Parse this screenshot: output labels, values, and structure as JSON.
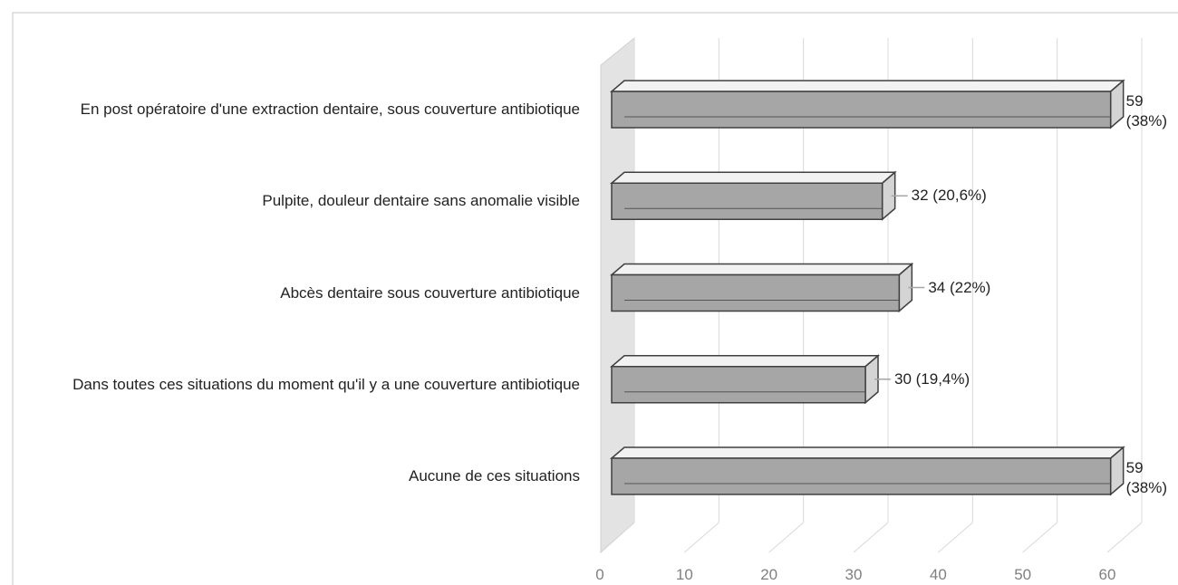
{
  "chart_data": {
    "type": "bar3d-horizontal",
    "categories": [
      "En post opératoire d'une extraction dentaire, sous couverture antibiotique",
      "Pulpite, douleur dentaire sans anomalie visible",
      "Abcès dentaire sous couverture antibiotique",
      "Dans toutes ces situations du moment qu'il y a une couverture antibiotique",
      "Aucune de ces situations"
    ],
    "values": [
      59,
      32,
      34,
      30,
      59
    ],
    "value_labels": [
      "59 (38%)",
      "32 (20,6%)",
      "34 (22%)",
      "30 (19,4%)",
      "59 (38%)"
    ],
    "color": "#a6a6a6",
    "xlim": [
      0,
      60
    ],
    "xticks": [
      0,
      10,
      20,
      30,
      40,
      50,
      60
    ],
    "grid": true
  }
}
